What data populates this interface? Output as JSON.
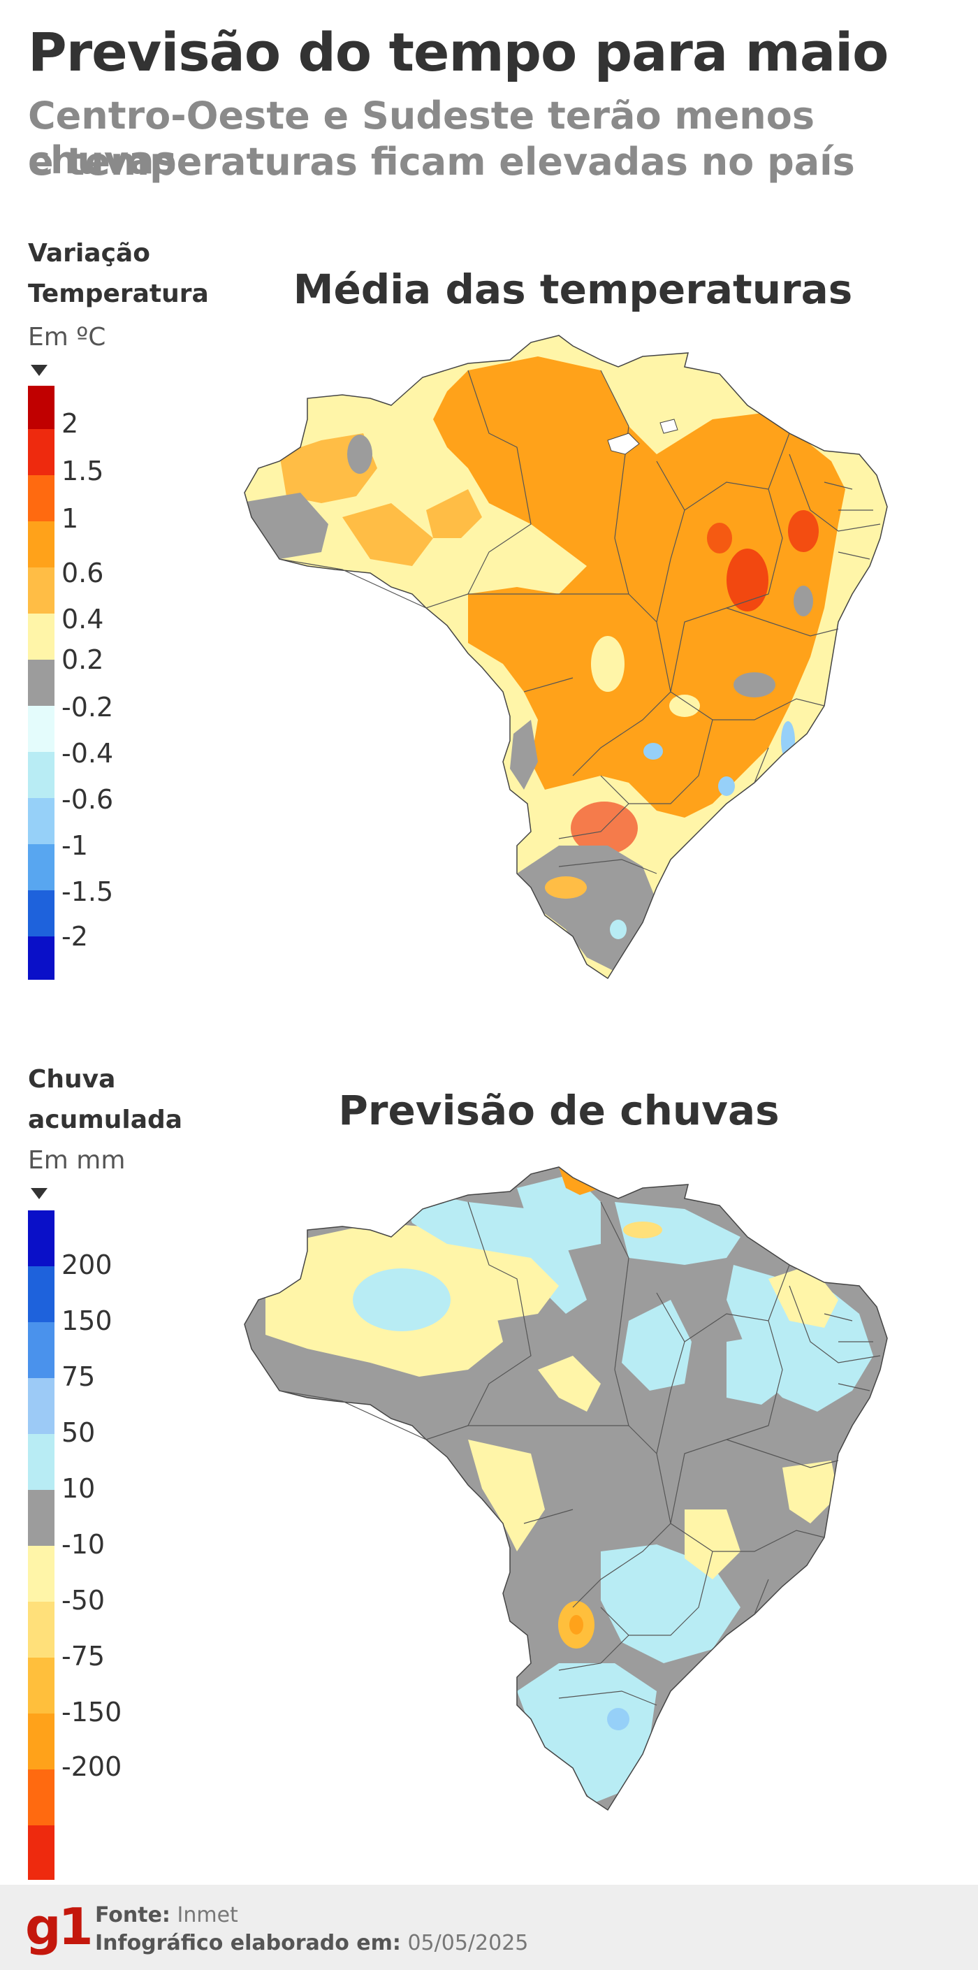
{
  "header": {
    "title": "Previsão do tempo para maio",
    "subtitle_line1": "Centro-Oeste e Sudeste terão menos chuvas",
    "subtitle_line2": "e temperaturas ficam elevadas no país"
  },
  "temperature": {
    "legend_title_line1": "Variação",
    "legend_title_line2": "Temperatura",
    "legend_unit": "Em ºC",
    "map_title": "Média das temperaturas",
    "scale": [
      {
        "label": "2",
        "color": "#c00000"
      },
      {
        "label": "1.5",
        "color": "#ee2a0e"
      },
      {
        "label": "1",
        "color": "#ff6a10"
      },
      {
        "label": "0.6",
        "color": "#ffa21a"
      },
      {
        "label": "0.4",
        "color": "#ffbd45"
      },
      {
        "label": "0.2",
        "color": "#fff5a8"
      },
      {
        "label": "-0.2",
        "color": "#9c9c9c"
      },
      {
        "label": "-0.4",
        "color": "#e4fcfc"
      },
      {
        "label": "-0.6",
        "color": "#b8ecf4"
      },
      {
        "label": "-1",
        "color": "#96d0f8"
      },
      {
        "label": "-1.5",
        "color": "#58a6f0"
      },
      {
        "label": "-2",
        "color": "#1e62dc"
      },
      {
        "color": "#0a10c8"
      }
    ]
  },
  "rain": {
    "legend_title_line1": "Chuva",
    "legend_title_line2": "acumulada",
    "legend_unit": "Em mm",
    "map_title": "Previsão de chuvas",
    "scale": [
      {
        "color": "#0a10c8"
      },
      {
        "label": "200",
        "color": "#1e62dc"
      },
      {
        "label": "150",
        "color": "#4a92ec"
      },
      {
        "label": "75",
        "color": "#9ccaf6"
      },
      {
        "label": "50",
        "color": "#b8ecf4"
      },
      {
        "label": "10",
        "color": "#9c9c9c"
      },
      {
        "label": "-10",
        "color": "#fff5a8"
      },
      {
        "label": "-50",
        "color": "#ffe07a"
      },
      {
        "label": "-75",
        "color": "#ffbf3c"
      },
      {
        "label": "-150",
        "color": "#ffa21a"
      },
      {
        "label": "-200",
        "color": "#ff6a10"
      },
      {
        "color": "#ee2a0e"
      }
    ]
  },
  "footer": {
    "logo": "g1",
    "source_label": "Fonte:",
    "source_value": "Inmet",
    "date_label": "Infográfico elaborado em:",
    "date_value": "05/05/2025"
  }
}
